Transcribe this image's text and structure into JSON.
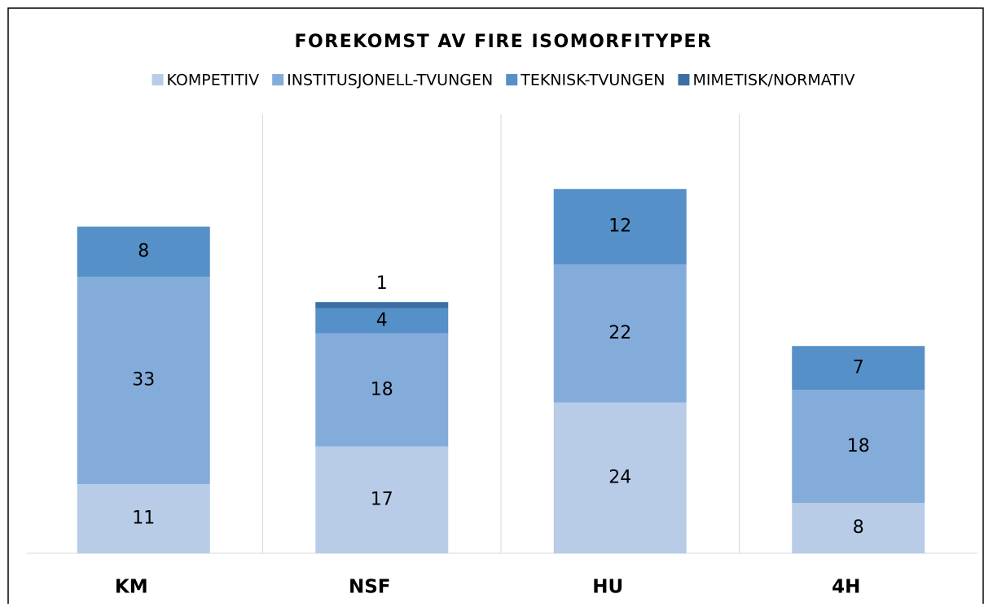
{
  "chart_data": {
    "type": "stacked-bar",
    "title": "FOREKOMST AV FIRE ISOMORFITYPER",
    "categories": [
      "KM",
      "NSF",
      "HU",
      "4H"
    ],
    "series": [
      {
        "name": "KOMPETITIV",
        "color": "#b8cce8",
        "values": [
          11,
          17,
          24,
          8
        ]
      },
      {
        "name": "INSTITUSJONELL-TVUNGEN",
        "color": "#84acdb",
        "values": [
          33,
          18,
          22,
          18
        ]
      },
      {
        "name": "TEKNISK-TVUNGEN",
        "color": "#5590c8",
        "values": [
          8,
          4,
          12,
          7
        ]
      },
      {
        "name": "MIMETISK/NORMATIV",
        "color": "#3d6fa5",
        "values": [
          null,
          1,
          null,
          null
        ]
      }
    ],
    "legend": "top"
  }
}
